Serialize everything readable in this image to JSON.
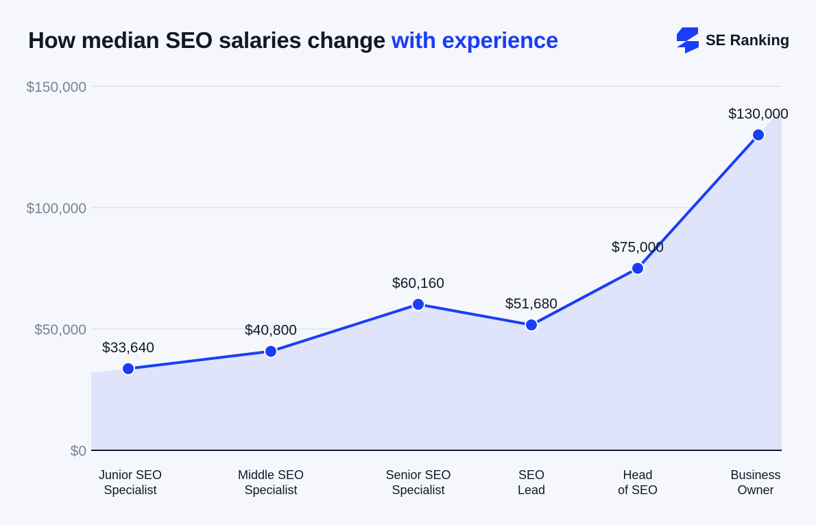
{
  "title": {
    "main": "How median SEO salaries change ",
    "highlight": "with experience"
  },
  "logo": {
    "text": "SE Ranking"
  },
  "colors": {
    "line": "#1a3ef5",
    "area": "#dfe4fb",
    "grid": "#dde2f0",
    "axis_text": "#7b8396",
    "background": "#f5f7fc"
  },
  "chart_data": {
    "type": "line",
    "categories": [
      [
        "Junior SEO",
        "Specialist"
      ],
      [
        "Middle SEO",
        "Specialist"
      ],
      [
        "Senior SEO",
        "Specialist"
      ],
      [
        "SEO",
        "Lead"
      ],
      [
        "Head",
        "of SEO"
      ],
      [
        "Business",
        "Owner"
      ]
    ],
    "values": [
      33640,
      40800,
      60160,
      51680,
      75000,
      130000
    ],
    "data_labels": [
      "$33,640",
      "$40,800",
      "$60,160",
      "$51,680",
      "$75,000",
      "$130,000"
    ],
    "yticks": [
      0,
      50000,
      100000,
      150000
    ],
    "ytick_labels": [
      "$0",
      "$50,000",
      "$100,000",
      "$150,000"
    ],
    "ylim": [
      0,
      150000
    ],
    "grid": true,
    "area_fill": true
  }
}
